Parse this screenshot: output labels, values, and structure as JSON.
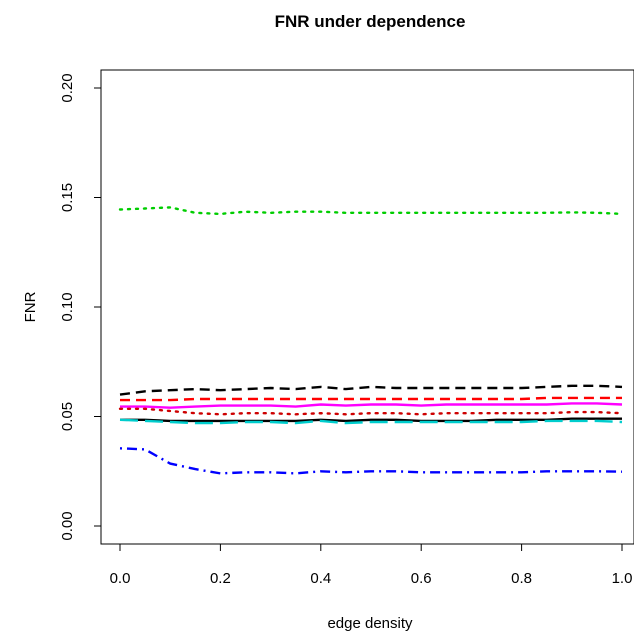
{
  "chart_data": {
    "type": "line",
    "title": "FNR under dependence",
    "xlabel": "edge density",
    "ylabel": "FNR",
    "xlim": [
      0,
      1
    ],
    "ylim": [
      0,
      0.2
    ],
    "x_ticks": [
      "0.0",
      "0.2",
      "0.4",
      "0.6",
      "0.8",
      "1.0"
    ],
    "y_ticks": [
      "0.00",
      "0.05",
      "0.10",
      "0.15",
      "0.20"
    ],
    "grid": false,
    "legend": "none",
    "x": [
      0,
      0.05,
      0.1,
      0.15,
      0.2,
      0.25,
      0.3,
      0.35,
      0.4,
      0.45,
      0.5,
      0.55,
      0.6,
      0.65,
      0.7,
      0.75,
      0.8,
      0.85,
      0.9,
      0.95,
      1.0
    ],
    "series": [
      {
        "color": "#00cd00",
        "dash": "dotted",
        "values": [
          0.1445,
          0.145,
          0.1455,
          0.143,
          0.1425,
          0.1435,
          0.143,
          0.1435,
          0.1435,
          0.143,
          0.143,
          0.143,
          0.143,
          0.143,
          0.143,
          0.143,
          0.143,
          0.143,
          0.1432,
          0.143,
          0.1425
        ]
      },
      {
        "color": "#000000",
        "dash": "dashed",
        "values": [
          0.06,
          0.0615,
          0.062,
          0.0625,
          0.062,
          0.0625,
          0.063,
          0.0625,
          0.0635,
          0.0625,
          0.0635,
          0.063,
          0.063,
          0.063,
          0.063,
          0.063,
          0.063,
          0.0635,
          0.064,
          0.064,
          0.0635
        ]
      },
      {
        "color": "#ff0000",
        "dash": "dashed",
        "values": [
          0.0575,
          0.0575,
          0.0575,
          0.058,
          0.058,
          0.058,
          0.058,
          0.058,
          0.058,
          0.058,
          0.058,
          0.058,
          0.058,
          0.058,
          0.058,
          0.058,
          0.058,
          0.0585,
          0.0585,
          0.0585,
          0.0585
        ]
      },
      {
        "color": "#ff00ff",
        "dash": "solid",
        "values": [
          0.0545,
          0.0545,
          0.054,
          0.0545,
          0.055,
          0.055,
          0.055,
          0.0545,
          0.0555,
          0.055,
          0.0555,
          0.0555,
          0.055,
          0.0555,
          0.0555,
          0.0555,
          0.0555,
          0.0555,
          0.056,
          0.056,
          0.0555
        ]
      },
      {
        "color": "#cd0000",
        "dash": "dotted",
        "values": [
          0.0535,
          0.0535,
          0.0525,
          0.0515,
          0.051,
          0.0515,
          0.0515,
          0.051,
          0.0515,
          0.051,
          0.0515,
          0.0515,
          0.051,
          0.0515,
          0.0515,
          0.0515,
          0.0515,
          0.0515,
          0.052,
          0.052,
          0.0515
        ]
      },
      {
        "color": "#000000",
        "dash": "solid",
        "values": [
          0.0485,
          0.0485,
          0.048,
          0.048,
          0.048,
          0.048,
          0.048,
          0.048,
          0.0485,
          0.048,
          0.0485,
          0.0485,
          0.048,
          0.048,
          0.048,
          0.0485,
          0.0485,
          0.0485,
          0.049,
          0.049,
          0.049
        ]
      },
      {
        "color": "#00cdcd",
        "dash": "longdash",
        "values": [
          0.0485,
          0.048,
          0.0475,
          0.047,
          0.047,
          0.0475,
          0.0475,
          0.047,
          0.048,
          0.047,
          0.0475,
          0.0475,
          0.0475,
          0.0475,
          0.0475,
          0.0475,
          0.0475,
          0.048,
          0.048,
          0.048,
          0.0475
        ]
      },
      {
        "color": "#0000ff",
        "dash": "dotdash",
        "values": [
          0.0355,
          0.035,
          0.0285,
          0.026,
          0.024,
          0.0245,
          0.0245,
          0.024,
          0.025,
          0.0245,
          0.025,
          0.025,
          0.0245,
          0.0245,
          0.0245,
          0.0245,
          0.0245,
          0.025,
          0.025,
          0.025,
          0.0248
        ]
      }
    ]
  }
}
